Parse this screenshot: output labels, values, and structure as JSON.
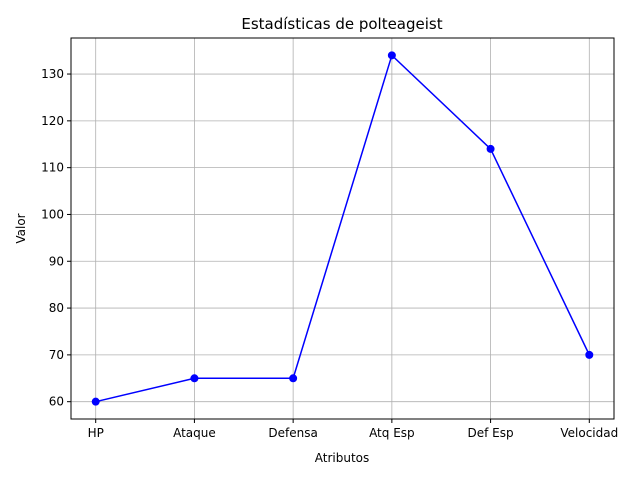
{
  "chart_data": {
    "type": "line",
    "title": "Estadísticas de polteageist",
    "xlabel": "Atributos",
    "ylabel": "Valor",
    "categories": [
      "HP",
      "Ataque",
      "Defensa",
      "Atq Esp",
      "Def Esp",
      "Velocidad"
    ],
    "values": [
      60,
      65,
      65,
      134,
      114,
      70
    ],
    "ylim": [
      56.3,
      137.7
    ],
    "yticks": [
      60,
      70,
      80,
      90,
      100,
      110,
      120,
      130
    ],
    "grid": true,
    "color": "#0000ff",
    "marker": "circle"
  }
}
